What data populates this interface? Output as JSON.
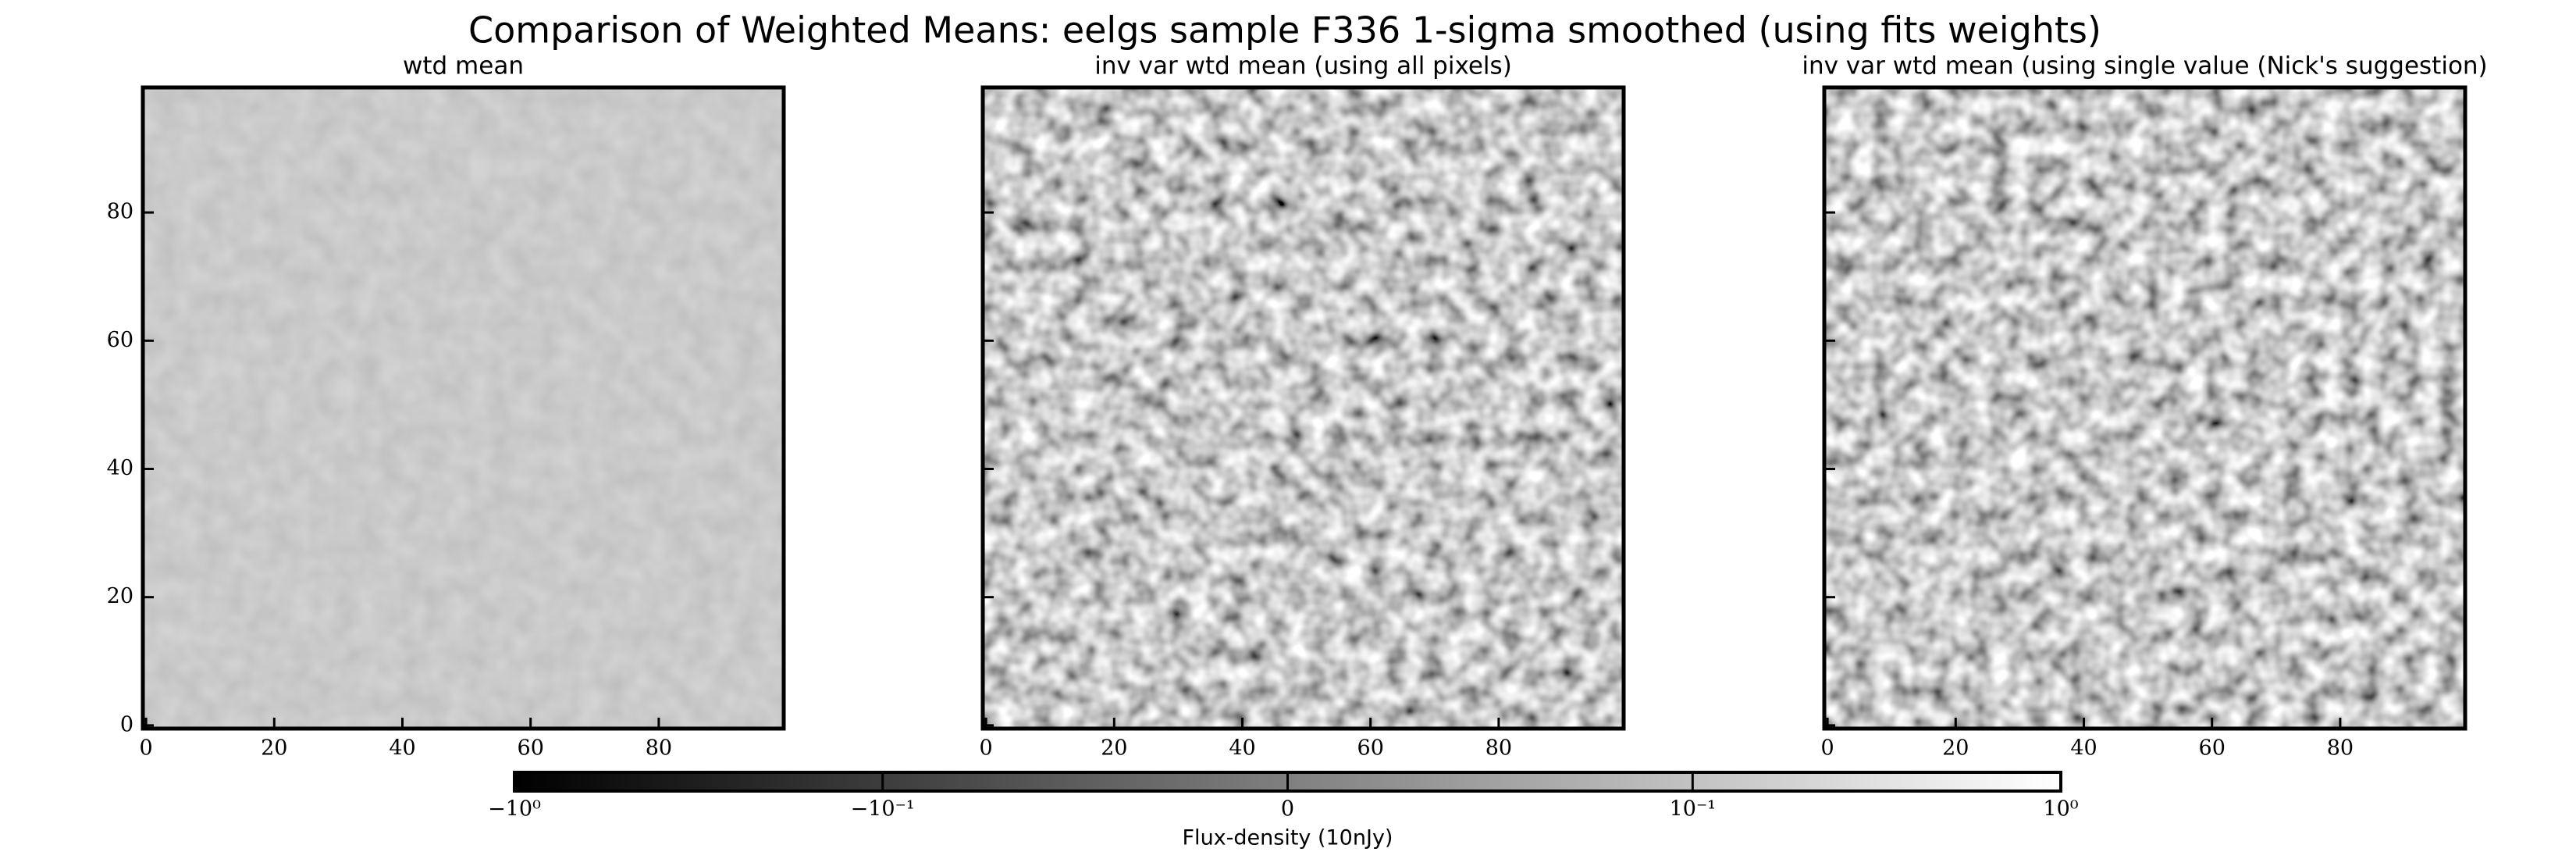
{
  "chart_data": {
    "type": "image",
    "title": "Comparison of Weighted Means: eelgs sample F336 1-sigma smoothed (using fits weights)",
    "panels": [
      {
        "title": "wtd mean"
      },
      {
        "title": "inv var wtd mean (using all pixels)"
      },
      {
        "title": "inv var wtd mean (using single value (Nick's suggestion)"
      }
    ],
    "xlim": [
      -0.5,
      99.5
    ],
    "ylim": [
      -0.5,
      99.5
    ],
    "xticks": [
      0,
      20,
      40,
      60,
      80
    ],
    "yticks": [
      0,
      20,
      40,
      60,
      80
    ],
    "colorbar": {
      "label": "Flux-density (10nJy)",
      "scale": "symlog",
      "lim": [
        -1,
        1
      ],
      "ticks": [
        {
          "value": -1,
          "label": "−10⁰"
        },
        {
          "value": -0.1,
          "label": "−10⁻¹"
        },
        0,
        {
          "value": 0.1,
          "label": "10⁻¹"
        },
        {
          "value": 1,
          "label": "10⁰"
        }
      ]
    }
  }
}
